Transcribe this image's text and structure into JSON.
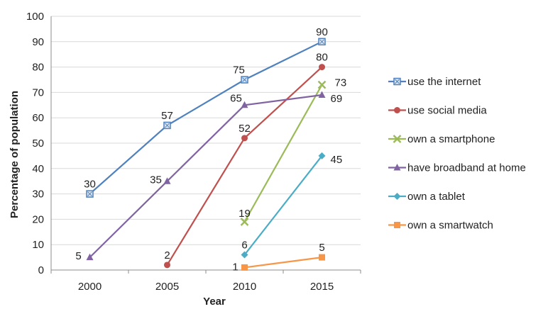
{
  "chart_data": {
    "type": "line",
    "xlabel": "Year",
    "ylabel": "Percentage of population",
    "ylim": [
      0,
      100
    ],
    "yticks": [
      0,
      10,
      20,
      30,
      40,
      50,
      60,
      70,
      80,
      90,
      100
    ],
    "categories": [
      "2000",
      "2005",
      "2010",
      "2015"
    ],
    "grid": "horizontal",
    "legend_position": "right",
    "series": [
      {
        "name": "use the internet",
        "color": "#4F81BD",
        "marker": "square-open",
        "points": [
          {
            "x": "2000",
            "y": 30
          },
          {
            "x": "2005",
            "y": 57
          },
          {
            "x": "2010",
            "y": 75
          },
          {
            "x": "2015",
            "y": 90
          }
        ]
      },
      {
        "name": "use social media",
        "color": "#C0504D",
        "marker": "circle",
        "points": [
          {
            "x": "2005",
            "y": 2
          },
          {
            "x": "2010",
            "y": 52
          },
          {
            "x": "2015",
            "y": 80
          }
        ]
      },
      {
        "name": "own a smartphone",
        "color": "#9BBB59",
        "marker": "x",
        "points": [
          {
            "x": "2010",
            "y": 19
          },
          {
            "x": "2015",
            "y": 73
          }
        ]
      },
      {
        "name": "have broadband at home",
        "color": "#8064A2",
        "marker": "triangle",
        "points": [
          {
            "x": "2000",
            "y": 5
          },
          {
            "x": "2005",
            "y": 35
          },
          {
            "x": "2010",
            "y": 65
          },
          {
            "x": "2015",
            "y": 69
          }
        ]
      },
      {
        "name": "own a tablet",
        "color": "#4BACC6",
        "marker": "diamond",
        "points": [
          {
            "x": "2010",
            "y": 6
          },
          {
            "x": "2015",
            "y": 45
          }
        ]
      },
      {
        "name": "own a smartwatch",
        "color": "#F79646",
        "marker": "square",
        "points": [
          {
            "x": "2010",
            "y": 1
          },
          {
            "x": "2015",
            "y": 5
          }
        ]
      }
    ]
  }
}
